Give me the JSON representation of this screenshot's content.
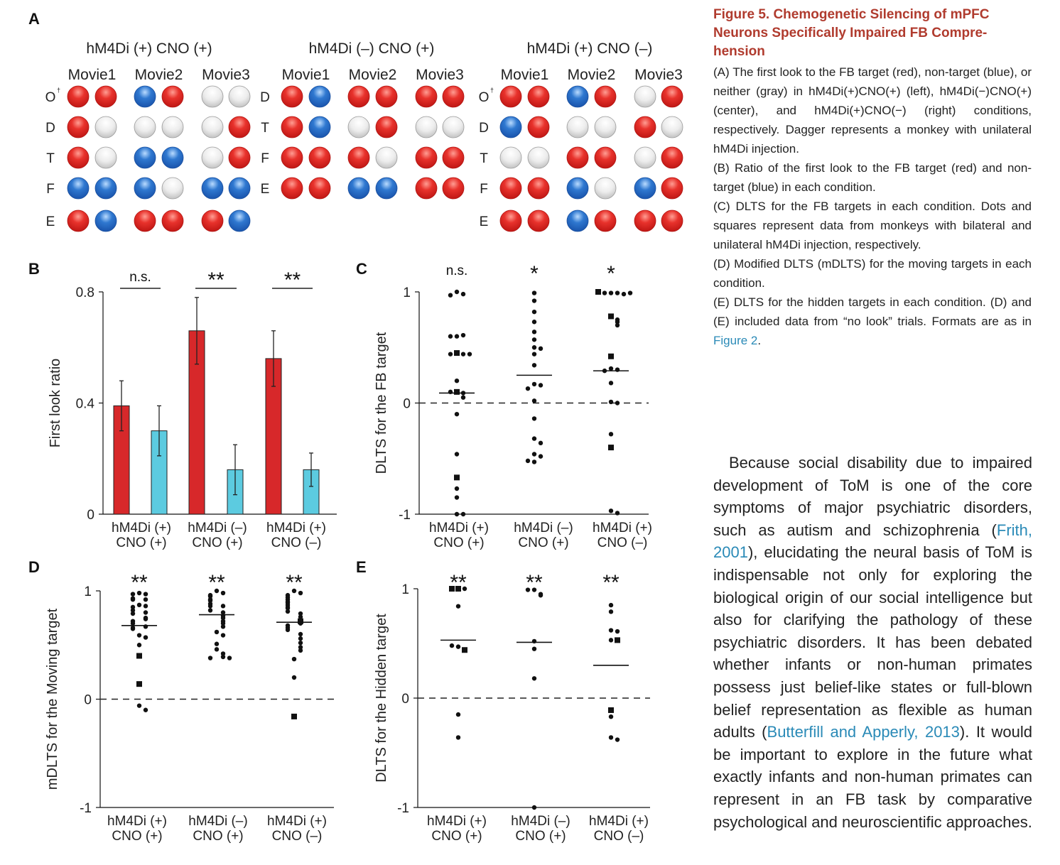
{
  "panel_a": {
    "letter": "A",
    "groups": [
      {
        "condition": "hM4Di (+)  CNO (+)",
        "movies": [
          "Movie1",
          "Movie2",
          "Movie3"
        ],
        "rows": [
          {
            "label": "O",
            "dagger": "†",
            "dots": [
              "red",
              "red",
              "blue",
              "red",
              "gray",
              "gray"
            ]
          },
          {
            "label": "D",
            "dagger": "",
            "dots": [
              "red",
              "gray",
              "gray",
              "gray",
              "gray",
              "red"
            ]
          },
          {
            "label": "T",
            "dagger": "",
            "dots": [
              "red",
              "gray",
              "blue",
              "blue",
              "gray",
              "red"
            ]
          },
          {
            "label": "F",
            "dagger": "",
            "dots": [
              "blue",
              "blue",
              "blue",
              "gray",
              "blue",
              "blue"
            ]
          },
          {
            "label": "E",
            "dagger": "",
            "dots": [
              "red",
              "blue",
              "red",
              "red",
              "red",
              "blue"
            ]
          }
        ]
      },
      {
        "condition": "hM4Di (–)  CNO (+)",
        "movies": [
          "Movie1",
          "Movie2",
          "Movie3"
        ],
        "rows": [
          {
            "label": "D",
            "dagger": "",
            "dots": [
              "red",
              "blue",
              "red",
              "red",
              "red",
              "red"
            ]
          },
          {
            "label": "T",
            "dagger": "",
            "dots": [
              "red",
              "blue",
              "gray",
              "red",
              "gray",
              "gray"
            ]
          },
          {
            "label": "F",
            "dagger": "",
            "dots": [
              "red",
              "red",
              "red",
              "gray",
              "red",
              "red"
            ]
          },
          {
            "label": "E",
            "dagger": "",
            "dots": [
              "red",
              "red",
              "blue",
              "blue",
              "red",
              "red"
            ]
          }
        ]
      },
      {
        "condition": "hM4Di (+)  CNO (–)",
        "movies": [
          "Movie1",
          "Movie2",
          "Movie3"
        ],
        "rows": [
          {
            "label": "O",
            "dagger": "†",
            "dots": [
              "red",
              "red",
              "blue",
              "red",
              "gray",
              "red"
            ]
          },
          {
            "label": "D",
            "dagger": "",
            "dots": [
              "blue",
              "red",
              "gray",
              "gray",
              "red",
              "gray"
            ]
          },
          {
            "label": "T",
            "dagger": "",
            "dots": [
              "gray",
              "gray",
              "red",
              "red",
              "gray",
              "red"
            ]
          },
          {
            "label": "F",
            "dagger": "",
            "dots": [
              "red",
              "red",
              "blue",
              "gray",
              "blue",
              "red"
            ]
          },
          {
            "label": "E",
            "dagger": "",
            "dots": [
              "red",
              "red",
              "blue",
              "red",
              "red",
              "red"
            ]
          }
        ]
      }
    ],
    "colors": {
      "red": "#e2322d",
      "blue": "#2c72c9",
      "gray": "#e6e6e6"
    }
  },
  "chart_data": [
    {
      "panel": "B",
      "type": "bar",
      "ylabel": "First look ratio",
      "ylim": [
        0,
        0.8
      ],
      "yticks": [
        "0",
        "0.4",
        "0.8"
      ],
      "categories": [
        [
          "hM4Di (+)",
          "CNO (+)"
        ],
        [
          "hM4Di (–)",
          "CNO (+)"
        ],
        [
          "hM4Di (+)",
          "CNO (–)"
        ]
      ],
      "series": [
        {
          "color": "#d7282a",
          "values": [
            0.39,
            0.66,
            0.56
          ],
          "error": [
            0.09,
            0.12,
            0.1
          ]
        },
        {
          "color": "#5ccbe0",
          "values": [
            0.3,
            0.16,
            0.16
          ],
          "error": [
            0.09,
            0.09,
            0.06
          ]
        }
      ],
      "significance": [
        "n.s.",
        "**",
        "**"
      ]
    },
    {
      "panel": "C",
      "type": "scatter",
      "ylabel": "DLTS for the FB target",
      "ylim": [
        -1,
        1
      ],
      "yticks": [
        "-1",
        "0",
        "1"
      ],
      "categories": [
        [
          "hM4Di (+)",
          "CNO (+)"
        ],
        [
          "hM4Di (–)",
          "CNO (+)"
        ],
        [
          "hM4Di (+)",
          "CNO (–)"
        ]
      ],
      "significance": [
        "n.s.",
        "*",
        "*"
      ],
      "means": [
        0.09,
        0.25,
        0.29
      ],
      "points": [
        [
          [
            1,
            "c"
          ],
          [
            0.98,
            "c"
          ],
          [
            0.97,
            "c"
          ],
          [
            0.6,
            "c"
          ],
          [
            0.61,
            "c"
          ],
          [
            0.6,
            "c"
          ],
          [
            0.45,
            "s"
          ],
          [
            0.44,
            "c"
          ],
          [
            0.44,
            "c"
          ],
          [
            0.44,
            "c"
          ],
          [
            0.2,
            "c"
          ],
          [
            0.1,
            "s"
          ],
          [
            0.09,
            "c"
          ],
          [
            0.1,
            "c"
          ],
          [
            0.05,
            "c"
          ],
          [
            -0.1,
            "c"
          ],
          [
            -0.46,
            "c"
          ],
          [
            -0.67,
            "s"
          ],
          [
            -0.77,
            "c"
          ],
          [
            -0.85,
            "c"
          ],
          [
            -1,
            "c"
          ],
          [
            -1,
            "c"
          ]
        ],
        [
          [
            0.99,
            "c"
          ],
          [
            0.92,
            "c"
          ],
          [
            0.82,
            "c"
          ],
          [
            0.73,
            "c"
          ],
          [
            0.64,
            "c"
          ],
          [
            0.57,
            "c"
          ],
          [
            0.5,
            "c"
          ],
          [
            0.49,
            "c"
          ],
          [
            0.44,
            "c"
          ],
          [
            0.34,
            "c"
          ],
          [
            0.17,
            "c"
          ],
          [
            0.16,
            "c"
          ],
          [
            0.13,
            "c"
          ],
          [
            0.02,
            "c"
          ],
          [
            -0.14,
            "c"
          ],
          [
            -0.32,
            "c"
          ],
          [
            -0.36,
            "c"
          ],
          [
            -0.46,
            "c"
          ],
          [
            -0.48,
            "c"
          ],
          [
            -0.53,
            "c"
          ],
          [
            -0.52,
            "c"
          ]
        ],
        [
          [
            0.99,
            "c"
          ],
          [
            0.99,
            "c"
          ],
          [
            0.99,
            "c"
          ],
          [
            0.98,
            "c"
          ],
          [
            1,
            "s"
          ],
          [
            0.99,
            "c"
          ],
          [
            0.78,
            "s"
          ],
          [
            0.75,
            "c"
          ],
          [
            0.73,
            "c"
          ],
          [
            0.7,
            "c"
          ],
          [
            0.42,
            "s"
          ],
          [
            0.31,
            "c"
          ],
          [
            0.3,
            "c"
          ],
          [
            0.29,
            "c"
          ],
          [
            0.18,
            "c"
          ],
          [
            0.01,
            "c"
          ],
          [
            0,
            "c"
          ],
          [
            -0.28,
            "c"
          ],
          [
            -0.4,
            "s"
          ],
          [
            -0.97,
            "c"
          ],
          [
            -0.99,
            "c"
          ]
        ]
      ]
    },
    {
      "panel": "D",
      "type": "scatter",
      "ylabel": "mDLTS for the Moving target",
      "ylim": [
        -1,
        1
      ],
      "yticks": [
        "-1",
        "0",
        "1"
      ],
      "categories": [
        [
          "hM4Di (+)",
          "CNO (+)"
        ],
        [
          "hM4Di (–)",
          "CNO (+)"
        ],
        [
          "hM4Di (+)",
          "CNO (–)"
        ]
      ],
      "significance": [
        "**",
        "**",
        "**"
      ],
      "means": [
        0.68,
        0.78,
        0.71
      ],
      "points": [
        [
          [
            0.98,
            "c"
          ],
          [
            0.97,
            "c"
          ],
          [
            0.97,
            "c"
          ],
          [
            0.93,
            "c"
          ],
          [
            0.92,
            "c"
          ],
          [
            0.92,
            "c"
          ],
          [
            0.87,
            "c"
          ],
          [
            0.86,
            "c"
          ],
          [
            0.85,
            "c"
          ],
          [
            0.82,
            "c"
          ],
          [
            0.8,
            "c"
          ],
          [
            0.79,
            "c"
          ],
          [
            0.75,
            "c"
          ],
          [
            0.74,
            "c"
          ],
          [
            0.72,
            "c"
          ],
          [
            0.7,
            "c"
          ],
          [
            0.67,
            "c"
          ],
          [
            0.66,
            "c"
          ],
          [
            0.65,
            "c"
          ],
          [
            0.59,
            "c"
          ],
          [
            0.57,
            "c"
          ],
          [
            0.5,
            "c"
          ],
          [
            0.4,
            "s"
          ],
          [
            0.14,
            "s"
          ],
          [
            -0.06,
            "c"
          ],
          [
            -0.1,
            "c"
          ]
        ],
        [
          [
            1,
            "c"
          ],
          [
            0.98,
            "c"
          ],
          [
            0.96,
            "c"
          ],
          [
            0.95,
            "c"
          ],
          [
            0.92,
            "c"
          ],
          [
            0.91,
            "c"
          ],
          [
            0.88,
            "c"
          ],
          [
            0.86,
            "c"
          ],
          [
            0.86,
            "c"
          ],
          [
            0.82,
            "c"
          ],
          [
            0.8,
            "c"
          ],
          [
            0.77,
            "c"
          ],
          [
            0.75,
            "c"
          ],
          [
            0.72,
            "c"
          ],
          [
            0.7,
            "c"
          ],
          [
            0.67,
            "c"
          ],
          [
            0.62,
            "c"
          ],
          [
            0.59,
            "c"
          ],
          [
            0.51,
            "c"
          ],
          [
            0.46,
            "c"
          ],
          [
            0.42,
            "c"
          ],
          [
            0.39,
            "c"
          ],
          [
            0.38,
            "c"
          ],
          [
            0.38,
            "c"
          ]
        ],
        [
          [
            1,
            "c"
          ],
          [
            0.98,
            "c"
          ],
          [
            0.96,
            "c"
          ],
          [
            0.94,
            "c"
          ],
          [
            0.92,
            "c"
          ],
          [
            0.9,
            "c"
          ],
          [
            0.89,
            "c"
          ],
          [
            0.87,
            "c"
          ],
          [
            0.85,
            "c"
          ],
          [
            0.84,
            "c"
          ],
          [
            0.81,
            "c"
          ],
          [
            0.79,
            "c"
          ],
          [
            0.76,
            "c"
          ],
          [
            0.72,
            "s"
          ],
          [
            0.7,
            "c"
          ],
          [
            0.68,
            "c"
          ],
          [
            0.66,
            "c"
          ],
          [
            0.64,
            "c"
          ],
          [
            0.6,
            "c"
          ],
          [
            0.56,
            "c"
          ],
          [
            0.52,
            "c"
          ],
          [
            0.48,
            "c"
          ],
          [
            0.45,
            "c"
          ],
          [
            0.37,
            "c"
          ],
          [
            0.2,
            "c"
          ],
          [
            -0.16,
            "s"
          ]
        ]
      ]
    },
    {
      "panel": "E",
      "type": "scatter",
      "ylabel": "DLTS for the Hidden target",
      "ylim": [
        -1,
        1
      ],
      "yticks": [
        "-1",
        "0",
        "1"
      ],
      "categories": [
        [
          "hM4Di (+)",
          "CNO (+)"
        ],
        [
          "hM4Di (–)",
          "CNO (+)"
        ],
        [
          "hM4Di (+)",
          "CNO (–)"
        ]
      ],
      "significance": [
        "**",
        "**",
        "**"
      ],
      "means": [
        0.53,
        0.51,
        0.3
      ],
      "points": [
        [
          [
            1,
            "s"
          ],
          [
            1,
            "c"
          ],
          [
            1,
            "s"
          ],
          [
            0.84,
            "c"
          ],
          [
            0.47,
            "c"
          ],
          [
            0.44,
            "s"
          ],
          [
            0.48,
            "c"
          ],
          [
            -0.15,
            "c"
          ],
          [
            -0.36,
            "c"
          ]
        ],
        [
          [
            0.99,
            "c"
          ],
          [
            0.95,
            "c"
          ],
          [
            0.94,
            "c"
          ],
          [
            0.99,
            "c"
          ],
          [
            0.52,
            "c"
          ],
          [
            0.45,
            "c"
          ],
          [
            0.18,
            "c"
          ],
          [
            -1,
            "c"
          ]
        ],
        [
          [
            0.85,
            "c"
          ],
          [
            0.79,
            "c"
          ],
          [
            0.62,
            "c"
          ],
          [
            0.61,
            "c"
          ],
          [
            0.53,
            "c"
          ],
          [
            0.53,
            "s"
          ],
          [
            -0.11,
            "s"
          ],
          [
            -0.17,
            "c"
          ],
          [
            -0.36,
            "c"
          ],
          [
            -0.38,
            "c"
          ]
        ]
      ]
    }
  ],
  "caption": {
    "title": "Figure 5. Chemogenetic Silencing of mPFC Neurons Specifically Impaired FB Comprehension",
    "title_lines": [
      "Figure 5. Chemogenetic Silencing of mPFC",
      "Neurons Specifically Impaired FB Compre-",
      "hension"
    ],
    "paragraphs": [
      "(A) The first look to the FB target (red), non-target (blue), or neither (gray) in hM4Di(+)CNO(+) (left), hM4Di(−)CNO(+) (center), and hM4Di(+)CNO(−) (right) conditions, respectively. Dagger represents a monkey with unilateral hM4Di injection.",
      "(B) Ratio of the first look to the FB target (red) and non-target (blue) in each condition.",
      "(C) DLTS for the FB targets in each condition. Dots and squares represent data from monkeys with bilateral and unilateral hM4Di injection, respectively.",
      "(D) Modified DLTS (mDLTS) for the moving targets in each condition."
    ],
    "para_e": "(E) DLTS for the hidden targets in each condition. (D) and (E) included data from “no look” trials. Formats are as in ",
    "para_e_link": "Figure 2",
    "para_e_end": "."
  },
  "body": {
    "part1": "Because social disability due to impaired development of ToM is one of the core symptoms of major psychiatric disorders, such as autism and schizophrenia (",
    "link1": "Frith, 2001",
    "part2": "), elucidating the neural basis of ToM is indispensable not only for exploring the biological origin of our social intelligence but also for clarifying the pathology of these psychiatric disorders. It has been debated whether infants or non-human primates possess just belief-like states or full-blown belief representation as flexible as human adults (",
    "link2": "Butterfill and Apperly, 2013",
    "part3": "). It would be important to explore in the future what exactly infants and non-human primates can represent in an FB task by comparative psychological and neuroscientific approaches."
  }
}
